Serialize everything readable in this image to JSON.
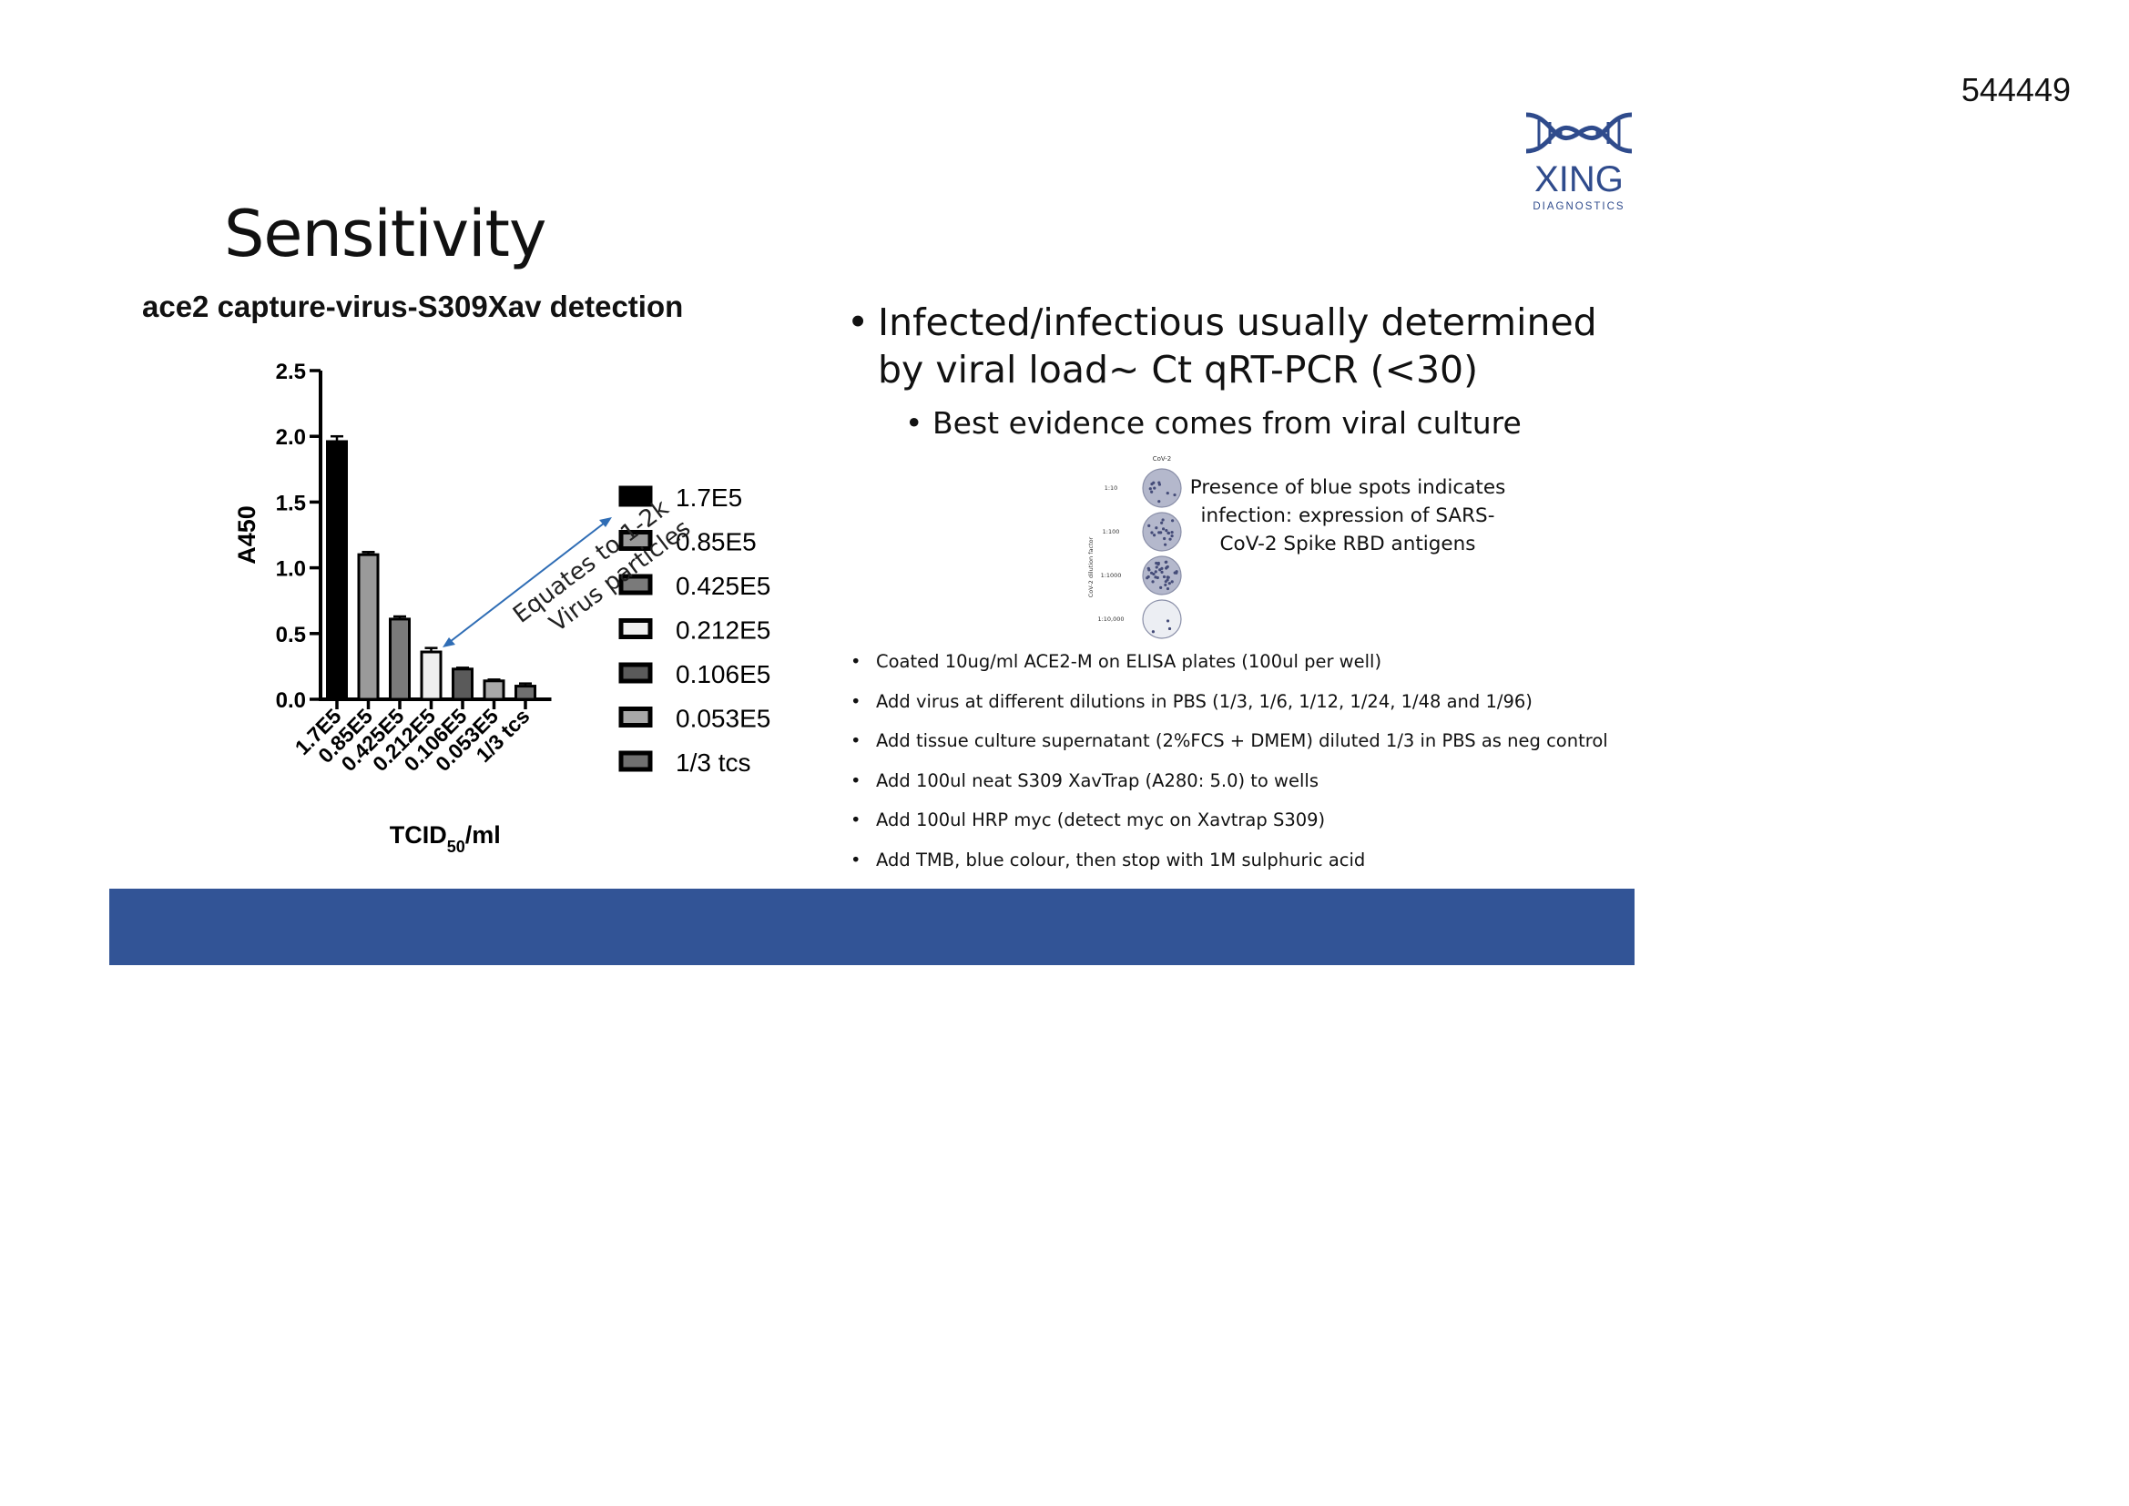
{
  "document_id": "544449",
  "slide": {
    "title": "Sensitivity",
    "footer_color": "#325496",
    "logo": {
      "text": "XING",
      "subtext": "DIAGNOSTICS",
      "color": "#2f4b8c",
      "icon": "dna-helix-icon"
    },
    "bullets": {
      "main": "Infected/infectious usually determined by viral load~ Ct qRT-PCR (<30)",
      "sub": "Best evidence comes from viral culture"
    },
    "plate_image": {
      "header": "CoV-2",
      "side_label": "CoV-2 dilution factor",
      "rows": [
        "1:10",
        "1:100",
        "1:1000",
        "1:10,000"
      ]
    },
    "culture_caption": "Presence of blue spots indicates infection: expression of SARS-CoV-2 Spike RBD antigens",
    "protocol_steps": [
      "Coated 10ug/ml ACE2-M on ELISA plates  (100ul per well)",
      "Add virus at different dilutions in PBS (1/3, 1/6, 1/12, 1/24, 1/48 and 1/96)",
      "Add tissue culture supernatant (2%FCS + DMEM) diluted 1/3 in PBS as neg control",
      "Add 100ul neat S309 XavTrap (A280: 5.0) to wells",
      "Add 100ul HRP myc (detect myc on Xavtrap S309)",
      "Add TMB, blue colour, then stop with 1M sulphuric acid"
    ]
  },
  "chart_data": {
    "type": "bar",
    "title": "ace2 capture-virus-S309Xav detection",
    "ylabel": "A450",
    "xlabel": "TCID50/ml",
    "ylim": [
      0,
      2.5
    ],
    "yticks": [
      "0.0",
      "0.5",
      "1.0",
      "1.5",
      "2.0",
      "2.5"
    ],
    "categories": [
      "1.7E5",
      "0.85E5",
      "0.425E5",
      "0.212E5",
      "0.106E5",
      "0.053E5",
      "1/3 tcs"
    ],
    "values": [
      1.96,
      1.1,
      0.61,
      0.36,
      0.23,
      0.14,
      0.1
    ],
    "errors": [
      0.04,
      0.02,
      0.02,
      0.03,
      0.01,
      0.01,
      0.02
    ],
    "colors": [
      "#000000",
      "#9a9a9a",
      "#7a7a7a",
      "#efefef",
      "#5a5a5a",
      "#a8a8a8",
      "#707070"
    ],
    "legend": [
      "1.7E5",
      "0.85E5",
      "0.425E5",
      "0.212E5",
      "0.106E5",
      "0.053E5",
      "1/3 tcs"
    ],
    "legend_position": "right",
    "annotation": "Equates to 1-2k Virus particles",
    "annotation_color": "#2f6db5"
  }
}
